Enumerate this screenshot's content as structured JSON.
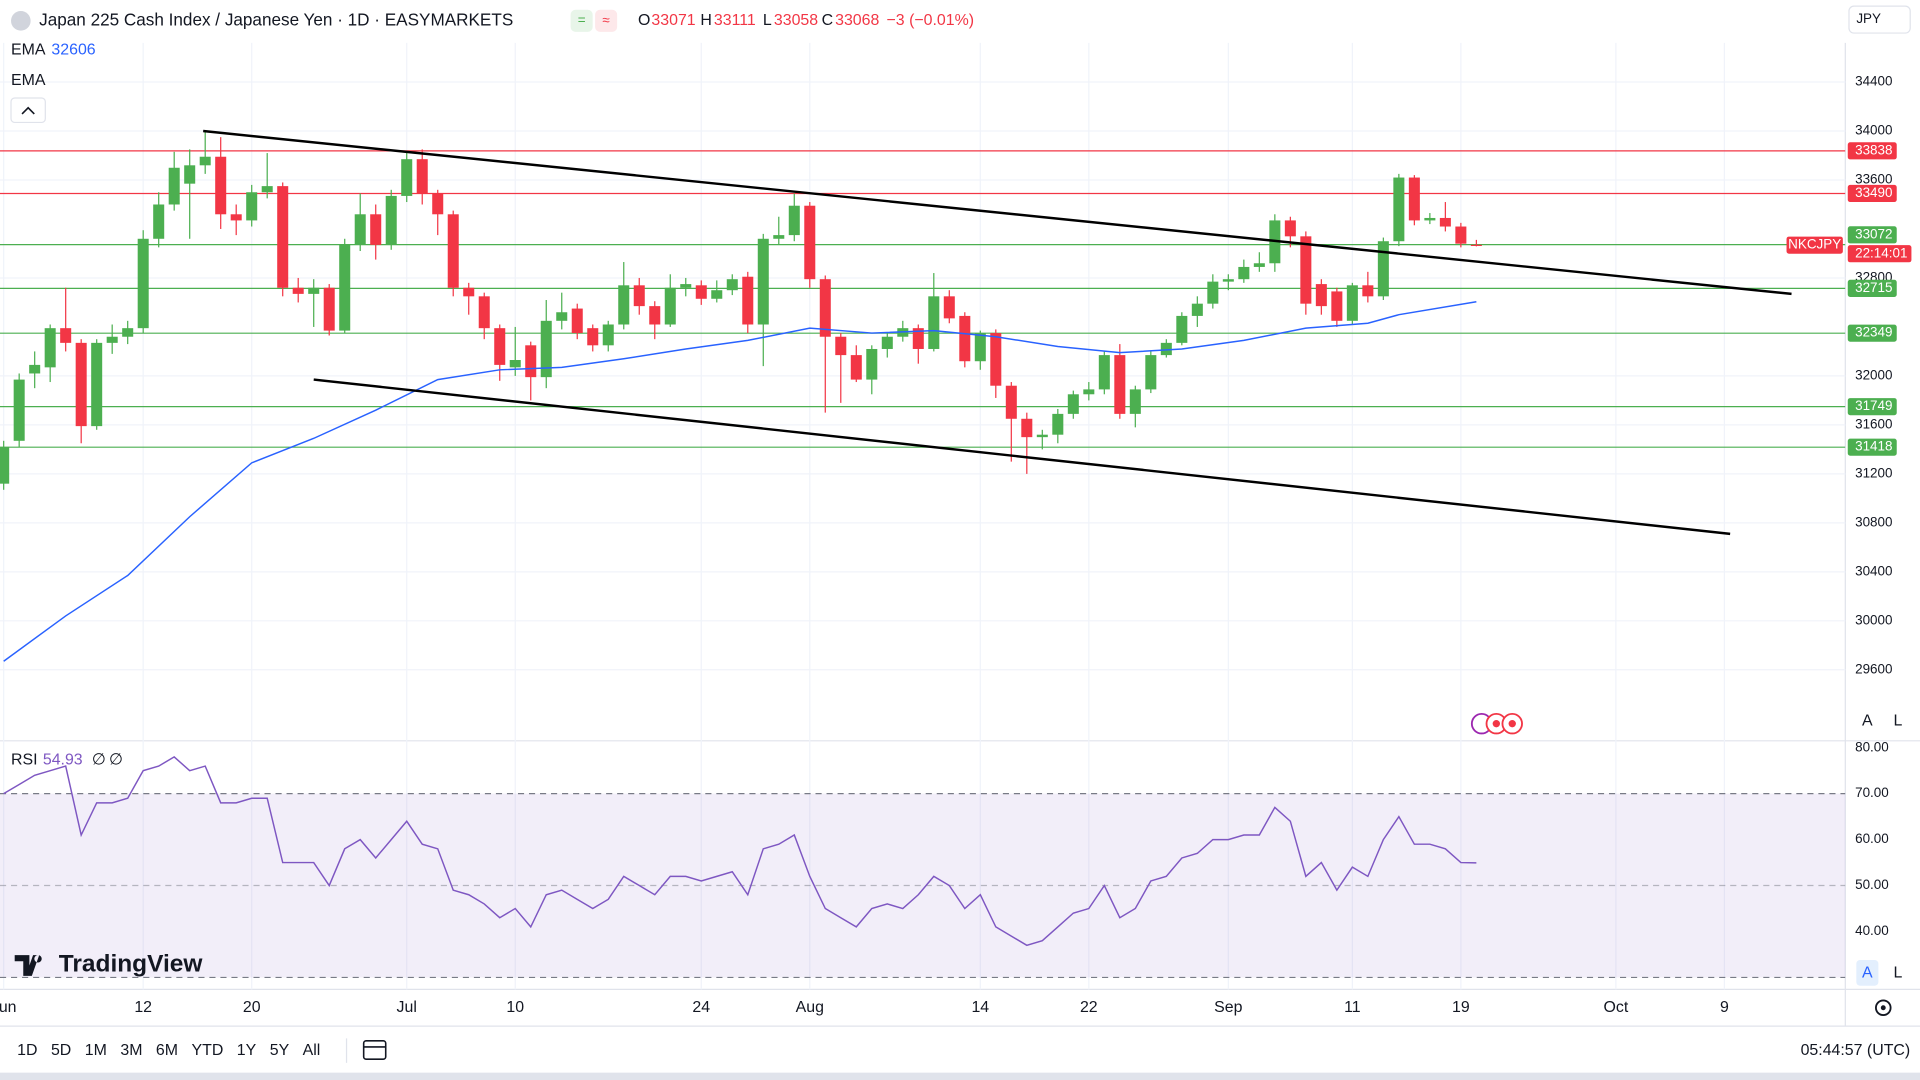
{
  "header": {
    "title": "Japan 225 Cash Index / Japanese Yen · 1D · EASYMARKETS",
    "ohlc_labels": [
      "O",
      "H",
      "L",
      "C"
    ],
    "change": "−3 (−0.01%)",
    "currency": "JPY",
    "symbol_tag": "NKCJPY",
    "countdown": "22:14:01",
    "brand": "TradingView",
    "axis_buttons": [
      "A",
      "L"
    ]
  },
  "toolbar": {
    "ranges": [
      "1D",
      "5D",
      "1M",
      "3M",
      "6M",
      "YTD",
      "1Y",
      "5Y",
      "All"
    ],
    "clock": "05:44:57 (UTC)"
  },
  "chart_data": [
    {
      "type": "candlestick",
      "up_color": "#4caf50",
      "down_color": "#f23645",
      "grid": true,
      "ylim": [
        29020,
        34720
      ],
      "yticks": [
        29600,
        30000,
        30400,
        30800,
        31200,
        31600,
        32000,
        32800,
        33600,
        34000,
        34400
      ],
      "xlim": [
        0,
        119
      ],
      "xticks": [
        {
          "value": 0,
          "label": "Jun"
        },
        {
          "value": 9,
          "label": "12"
        },
        {
          "value": 16,
          "label": "20"
        },
        {
          "value": 26,
          "label": "Jul"
        },
        {
          "value": 33,
          "label": "10"
        },
        {
          "value": 45,
          "label": "24"
        },
        {
          "value": 52,
          "label": "Aug"
        },
        {
          "value": 63,
          "label": "14"
        },
        {
          "value": 70,
          "label": "22"
        },
        {
          "value": 79,
          "label": "Sep"
        },
        {
          "value": 87,
          "label": "11"
        },
        {
          "value": 94,
          "label": "19"
        },
        {
          "value": 104,
          "label": "Oct"
        },
        {
          "value": 111,
          "label": "9"
        }
      ],
      "open": [
        31120,
        31470,
        32020,
        32070,
        32390,
        32270,
        31590,
        32270,
        32320,
        32390,
        33120,
        33400,
        33570,
        33720,
        33790,
        33320,
        33270,
        33500,
        33550,
        32720,
        32670,
        32720,
        32370,
        33070,
        33320,
        33070,
        33470,
        33770,
        33490,
        33320,
        32720,
        32650,
        32390,
        32070,
        32250,
        31990,
        32450,
        32550,
        32390,
        32250,
        32420,
        32740,
        32570,
        32420,
        32720,
        32740,
        32630,
        32700,
        32810,
        32420,
        33120,
        33150,
        33390,
        32790,
        32320,
        32170,
        31970,
        32220,
        32320,
        32390,
        32220,
        32650,
        32490,
        32120,
        32350,
        31920,
        31650,
        31500,
        31520,
        31690,
        31850,
        31890,
        32170,
        31690,
        31890,
        32170,
        32270,
        32490,
        32590,
        32770,
        32790,
        32890,
        32920,
        33270,
        33140,
        32750,
        32690,
        32450,
        32740,
        32650,
        33100,
        33620,
        33270,
        33290,
        33220,
        33071
      ],
      "high": [
        31470,
        32020,
        32200,
        32420,
        32720,
        32300,
        32300,
        32420,
        32450,
        33190,
        33500,
        33830,
        33850,
        34000,
        33950,
        33400,
        33560,
        33820,
        33580,
        32800,
        32790,
        32750,
        33120,
        33490,
        33400,
        33520,
        33830,
        33850,
        33520,
        33350,
        32760,
        32680,
        32420,
        32400,
        32280,
        32620,
        32680,
        32590,
        32420,
        32450,
        32930,
        32800,
        32610,
        32830,
        32800,
        32780,
        32780,
        32830,
        32850,
        33160,
        33300,
        33490,
        33420,
        32820,
        32350,
        32250,
        32250,
        32350,
        32450,
        32420,
        32840,
        32700,
        32520,
        32370,
        32380,
        31950,
        31700,
        31560,
        31730,
        31880,
        31950,
        32200,
        32260,
        31920,
        32200,
        32300,
        32520,
        32650,
        32830,
        32830,
        32950,
        33010,
        33320,
        33300,
        33180,
        32790,
        32720,
        32760,
        32850,
        33130,
        33650,
        33640,
        33330,
        33420,
        33250,
        33111
      ],
      "low": [
        31070,
        31420,
        31900,
        31950,
        32200,
        31450,
        31560,
        32180,
        32260,
        32350,
        33050,
        33350,
        33120,
        33650,
        33200,
        33150,
        33220,
        33450,
        32650,
        32600,
        32400,
        32330,
        32350,
        33020,
        32950,
        33030,
        33420,
        33400,
        33150,
        32650,
        32500,
        32300,
        31960,
        32000,
        31800,
        31900,
        32380,
        32300,
        32200,
        32200,
        32380,
        32500,
        32300,
        32400,
        32650,
        32580,
        32600,
        32660,
        32350,
        32080,
        33070,
        33100,
        32720,
        31700,
        31780,
        31950,
        31850,
        32150,
        32280,
        32100,
        32200,
        32430,
        32070,
        32050,
        31820,
        31300,
        31200,
        31400,
        31450,
        31650,
        31800,
        31850,
        31650,
        31580,
        31860,
        32150,
        32250,
        32400,
        32550,
        32700,
        32760,
        32850,
        32850,
        33050,
        32500,
        32500,
        32400,
        32420,
        32600,
        32620,
        33060,
        33230,
        33240,
        33180,
        33050,
        33058
      ],
      "close": [
        31420,
        31970,
        32090,
        32390,
        32270,
        31590,
        32270,
        32320,
        32390,
        33120,
        33400,
        33700,
        33720,
        33790,
        33320,
        33270,
        33500,
        33550,
        32720,
        32670,
        32720,
        32370,
        33070,
        33320,
        33070,
        33470,
        33770,
        33490,
        33320,
        32720,
        32650,
        32390,
        32090,
        32130,
        31990,
        32450,
        32520,
        32350,
        32250,
        32420,
        32740,
        32570,
        32420,
        32720,
        32750,
        32630,
        32700,
        32790,
        32420,
        33120,
        33150,
        33390,
        32790,
        32320,
        32170,
        31970,
        32220,
        32320,
        32390,
        32220,
        32650,
        32470,
        32120,
        32350,
        31920,
        31650,
        31500,
        31520,
        31690,
        31850,
        31890,
        32170,
        31690,
        31890,
        32170,
        32270,
        32490,
        32590,
        32770,
        32790,
        32890,
        32920,
        33270,
        33140,
        32590,
        32570,
        32450,
        32740,
        32650,
        33100,
        33620,
        33270,
        33290,
        33220,
        33080,
        33068
      ],
      "series": [
        {
          "name": "EMA",
          "color": "#2962ff",
          "x": [
            0,
            4,
            8,
            12,
            16,
            20,
            24,
            28,
            32,
            36,
            40,
            44,
            48,
            52,
            56,
            60,
            64,
            68,
            72,
            76,
            80,
            84,
            88,
            90,
            95
          ],
          "values": [
            29670,
            30040,
            30370,
            30850,
            31290,
            31490,
            31720,
            31970,
            32050,
            32070,
            32140,
            32220,
            32290,
            32390,
            32350,
            32370,
            32320,
            32240,
            32190,
            32220,
            32290,
            32390,
            32430,
            32500,
            32606
          ]
        },
        {
          "name": "EMA"
        }
      ],
      "levels": [
        {
          "value": 33838,
          "color": "#f23645"
        },
        {
          "value": 33490,
          "color": "#f23645"
        },
        {
          "value": 33072,
          "color": "#4caf50"
        },
        {
          "value": 32715,
          "color": "#4caf50"
        },
        {
          "value": 32349,
          "color": "#4caf50"
        },
        {
          "value": 31749,
          "color": "#4caf50"
        },
        {
          "value": 31418,
          "color": "#4caf50"
        }
      ],
      "trendlines": [
        {
          "x": [
            12.87,
            115.33
          ],
          "values": [
            34000,
            32670
          ]
        },
        {
          "x": [
            20,
            111.37
          ],
          "values": [
            31970,
            30710
          ]
        }
      ]
    },
    {
      "type": "line",
      "ylim": [
        27.4,
        81.5
      ],
      "yticks": [
        {
          "value": 40,
          "label": "40.00"
        },
        {
          "value": 50,
          "label": "50.00"
        },
        {
          "value": 60,
          "label": "60.00"
        },
        {
          "value": 70,
          "label": "70.00"
        },
        {
          "value": 80,
          "label": "80.00"
        }
      ],
      "bands": [
        30,
        70
      ],
      "midline": 50,
      "legend_extras": [
        "∅",
        "∅"
      ],
      "series": [
        {
          "name": "RSI",
          "color": "#7e57c2",
          "values": [
            70,
            72,
            74,
            75,
            76,
            61,
            68,
            68,
            69,
            75,
            76,
            78,
            75,
            76,
            68,
            68,
            69,
            69,
            55,
            55,
            55,
            50,
            58,
            60,
            56,
            60,
            64,
            59,
            58,
            49,
            48,
            46,
            43,
            45,
            41,
            48,
            49,
            47,
            45,
            47,
            52,
            50,
            48,
            52,
            52,
            51,
            52,
            53,
            48,
            58,
            59,
            61,
            52,
            45,
            43,
            41,
            45,
            46,
            45,
            48,
            52,
            50,
            45,
            48,
            41,
            39,
            37,
            38,
            41,
            44,
            45,
            50,
            43,
            45,
            51,
            52,
            56,
            57,
            60,
            60,
            61,
            61,
            67,
            64,
            52,
            55,
            49,
            54,
            52,
            60,
            65,
            59,
            59,
            58,
            55,
            54.93
          ]
        }
      ]
    }
  ]
}
